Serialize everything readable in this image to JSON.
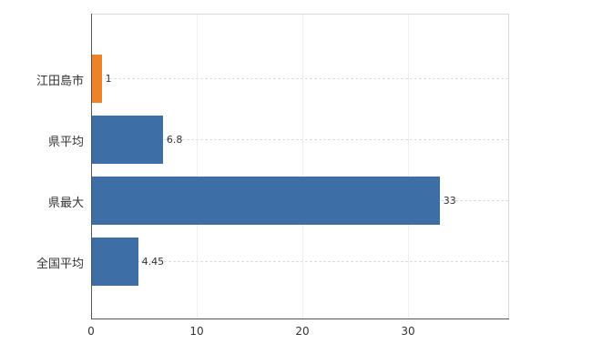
{
  "chart_data": {
    "type": "bar",
    "orientation": "horizontal",
    "title": "",
    "xlabel": "",
    "ylabel": "",
    "categories": [
      "江田島市",
      "県平均",
      "県最大",
      "全国平均"
    ],
    "values": [
      1,
      6.8,
      33,
      4.45
    ],
    "value_labels": [
      "1",
      "6.8",
      "33",
      "4.45"
    ],
    "bar_colors": [
      "#ee8227",
      "#3d6ea6",
      "#3d6ea6",
      "#3d6ea6"
    ],
    "xlim": [
      0,
      39.5
    ],
    "xticks": [
      0,
      10,
      20,
      30
    ],
    "xtick_labels": [
      "0",
      "10",
      "20",
      "30"
    ],
    "grid": true,
    "legend": false
  },
  "colors": {
    "background": "#ffffff",
    "axis_line": "#555555",
    "gridline": "#dcdcdc",
    "text": "#333333",
    "bar_blue": "#3d6ea6",
    "bar_orange": "#ee8227"
  }
}
